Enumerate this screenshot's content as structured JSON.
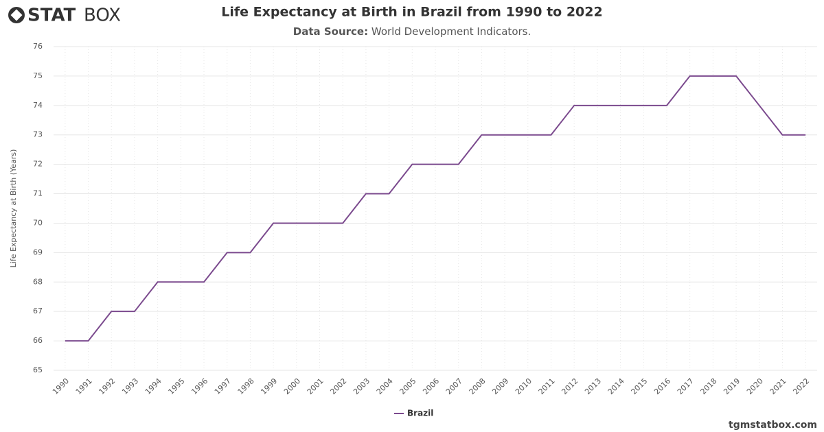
{
  "logo": {
    "bold": "STAT",
    "light": "BOX"
  },
  "footer": "tgmstatbox.com",
  "chart_data": {
    "type": "line",
    "title": "Life Expectancy at Birth in Brazil from 1990 to 2022",
    "subtitle": {
      "label": "Data Source:",
      "text": "World Development Indicators."
    },
    "y_label": "Life Expectancy at Birth (Years)",
    "categories": [
      "1990",
      "1991",
      "1992",
      "1993",
      "1994",
      "1995",
      "1996",
      "1997",
      "1998",
      "1999",
      "2000",
      "2001",
      "2002",
      "2003",
      "2004",
      "2005",
      "2006",
      "2007",
      "2008",
      "2009",
      "2010",
      "2011",
      "2012",
      "2013",
      "2014",
      "2015",
      "2016",
      "2017",
      "2018",
      "2019",
      "2020",
      "2021",
      "2022"
    ],
    "series": [
      {
        "name": "Brazil",
        "color": "#7b4a8e",
        "values": [
          66,
          66,
          67,
          67,
          68,
          68,
          68,
          69,
          69,
          70,
          70,
          70,
          70,
          71,
          71,
          72,
          72,
          72,
          73,
          73,
          73,
          73,
          74,
          74,
          74,
          74,
          74,
          75,
          75,
          75,
          74,
          73,
          73
        ]
      }
    ],
    "ylim": [
      65,
      76
    ],
    "yticks": [
      65,
      66,
      67,
      68,
      69,
      70,
      71,
      72,
      73,
      74,
      75,
      76
    ],
    "grid": true,
    "legend": "bottom"
  }
}
